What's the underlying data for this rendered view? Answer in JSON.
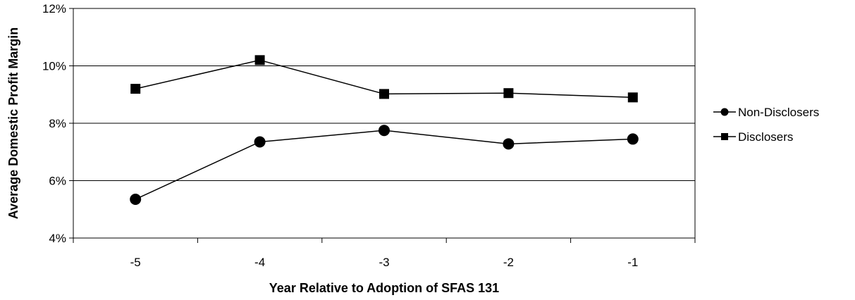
{
  "chart_data": {
    "type": "line",
    "title": "",
    "xlabel": "Year Relative to Adoption of SFAS 131",
    "ylabel": "Average Domestic Profit Margin",
    "categories": [
      "-5",
      "-4",
      "-3",
      "-2",
      "-1"
    ],
    "series": [
      {
        "name": "Non-Disclosers",
        "marker": "circle",
        "values": [
          5.35,
          7.35,
          7.75,
          7.28,
          7.45
        ]
      },
      {
        "name": "Disclosers",
        "marker": "square",
        "values": [
          9.2,
          10.2,
          9.02,
          9.05,
          8.9
        ]
      }
    ],
    "ylim": [
      4,
      12
    ],
    "yticks": [
      4,
      6,
      8,
      10,
      12
    ],
    "ytick_labels": [
      "4%",
      "6%",
      "8%",
      "10%",
      "12%"
    ],
    "grid": true,
    "legend": "right",
    "colors": {
      "line": "#000000",
      "grid": "#000000",
      "background": "#ffffff"
    }
  }
}
